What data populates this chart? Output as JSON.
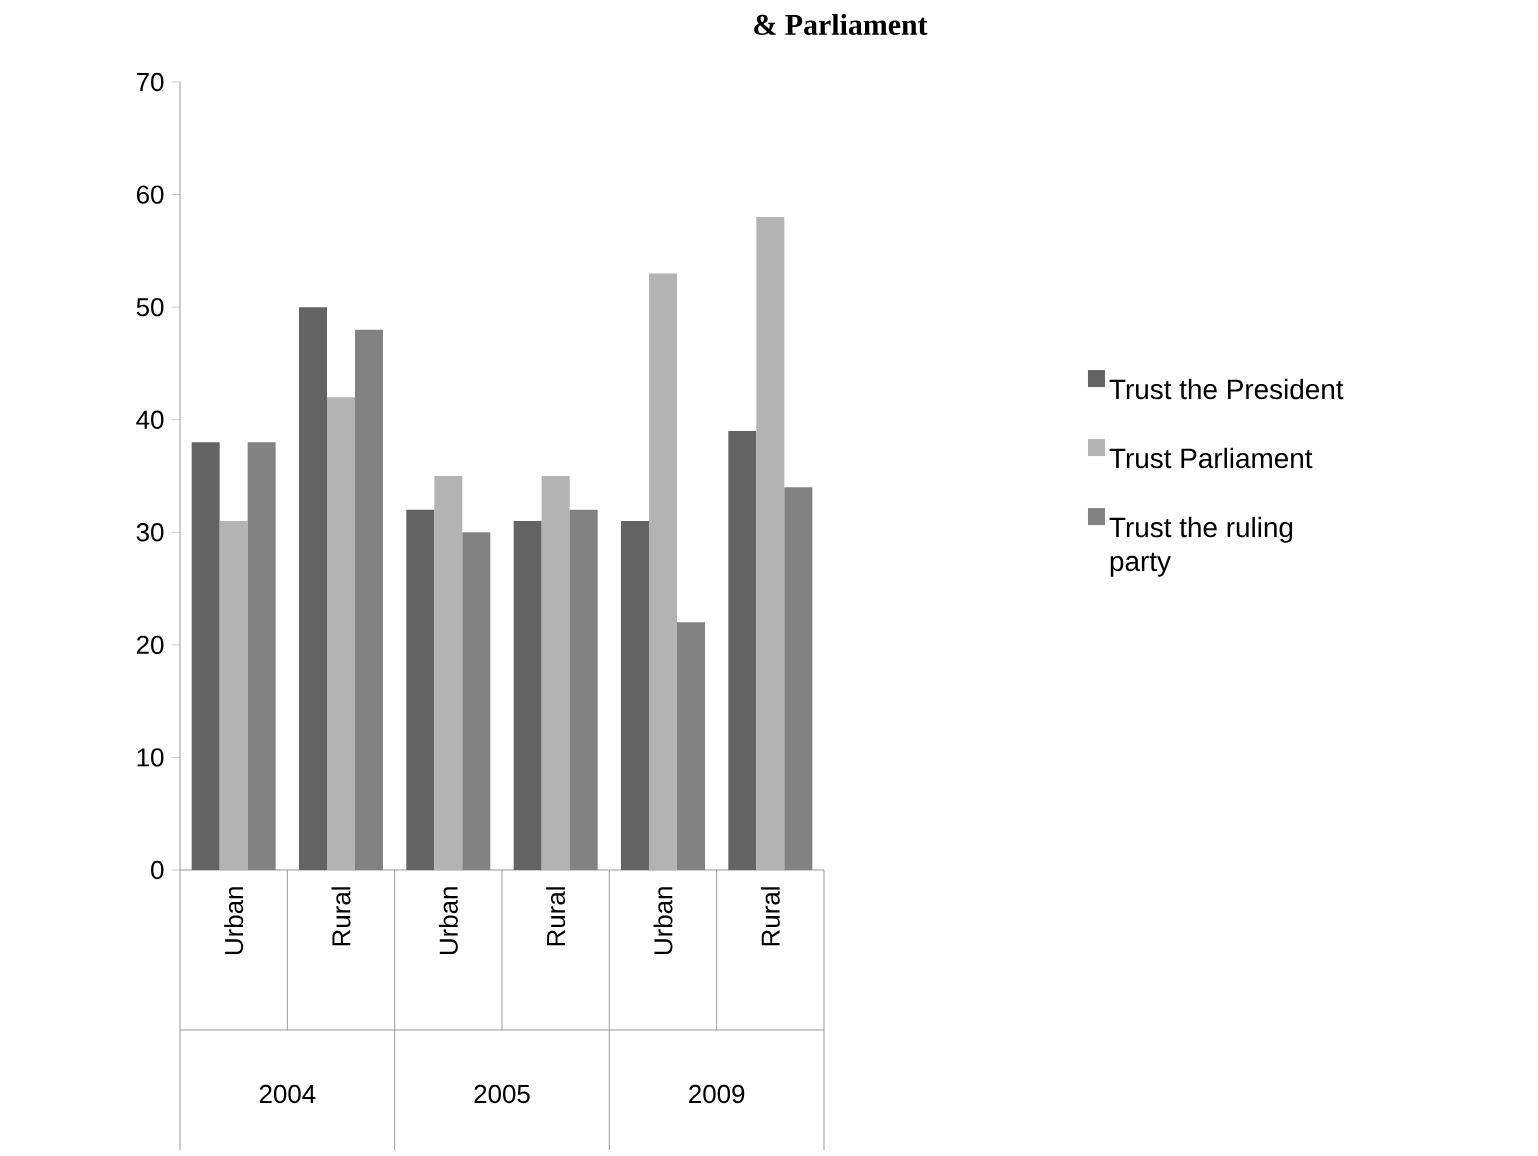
{
  "chart_data": {
    "type": "bar",
    "title": "& Parliament",
    "categories": [
      "Urban",
      "Rural",
      "Urban",
      "Rural",
      "Urban",
      "Rural"
    ],
    "series": [
      {
        "name": "Trust the President",
        "color": "#636363",
        "values": [
          38,
          50,
          32,
          31,
          31,
          39
        ]
      },
      {
        "name": " Trust Parliament",
        "color": "#b3b3b3",
        "values": [
          31,
          42,
          35,
          35,
          53,
          58
        ]
      },
      {
        "name": "Trust the ruling party",
        "color": "#828282",
        "values": [
          38,
          48,
          30,
          32,
          22,
          34
        ]
      }
    ],
    "ylim": [
      0,
      70
    ],
    "yticks": [
      0,
      10,
      20,
      30,
      40,
      50,
      60,
      70
    ],
    "legend": "right",
    "annotations": [
      "2004",
      "2005",
      "2009"
    ]
  }
}
